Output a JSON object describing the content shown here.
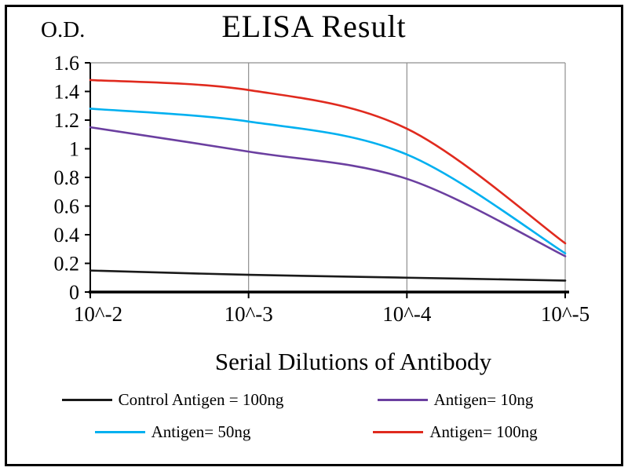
{
  "chart_data": {
    "type": "line",
    "title": "ELISA Result",
    "ylabel": "O.D.",
    "xlabel": "Serial Dilutions of Antibody",
    "x_tick_labels": [
      "10^-2",
      "10^-3",
      "10^-4",
      "10^-5"
    ],
    "y_ticks": [
      0,
      0.2,
      0.4,
      0.6,
      0.8,
      1,
      1.2,
      1.4,
      1.6
    ],
    "y_tick_labels": [
      "0",
      "0.2",
      "0.4",
      "0.6",
      "0.8",
      "1",
      "1.2",
      "1.4",
      "1.6"
    ],
    "ylim": [
      0,
      1.6
    ],
    "grid": "vertical-only",
    "legend_position": "bottom",
    "series": [
      {
        "name": "Control Antigen = 100ng",
        "color": "#1a1a1a",
        "values": [
          0.15,
          0.12,
          0.1,
          0.08
        ]
      },
      {
        "name": "Antigen= 10ng",
        "color": "#6b3fa0",
        "values": [
          1.15,
          0.98,
          0.79,
          0.25
        ]
      },
      {
        "name": "Antigen= 50ng",
        "color": "#00b0f0",
        "values": [
          1.28,
          1.19,
          0.96,
          0.27
        ]
      },
      {
        "name": "Antigen= 100ng",
        "color": "#e02a1e",
        "values": [
          1.48,
          1.41,
          1.14,
          0.34
        ]
      }
    ],
    "colors": {
      "axis": "#000000",
      "gridline": "#8f8f8f",
      "background": "#ffffff",
      "border": "#000000"
    }
  }
}
